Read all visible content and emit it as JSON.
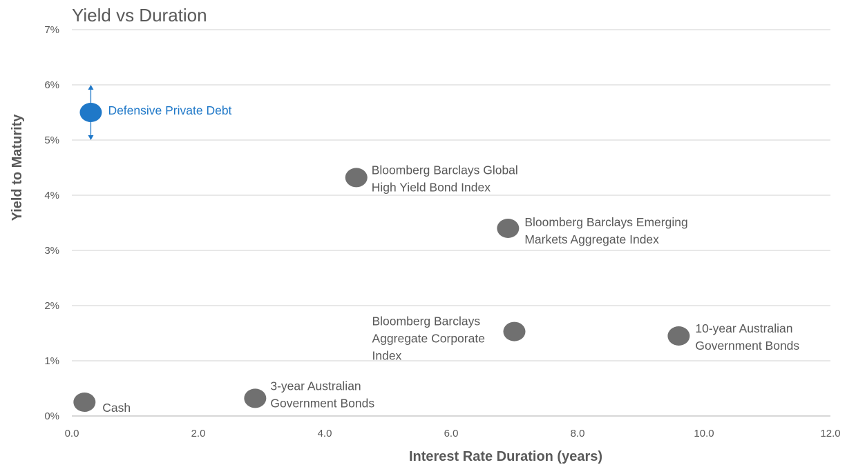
{
  "chart_data": {
    "type": "scatter",
    "title": "Yield vs Duration",
    "xlabel": "Interest Rate Duration (years)",
    "ylabel": "Yield to Maturity",
    "xlim": [
      0,
      12
    ],
    "ylim": [
      0,
      7
    ],
    "x_ticks": [
      "0.0",
      "2.0",
      "4.0",
      "6.0",
      "8.0",
      "10.0",
      "12.0"
    ],
    "y_ticks": [
      "0%",
      "1%",
      "2%",
      "3%",
      "4%",
      "5%",
      "6%",
      "7%"
    ],
    "grid": "horizontal",
    "points": [
      {
        "label": "Defensive Private Debt",
        "x": 0.3,
        "y": 5.5,
        "color": "#1f78c8",
        "highlight": true,
        "range": [
          5.0,
          6.0
        ]
      },
      {
        "label": "Bloomberg Barclays Global High Yield Bond Index",
        "lines": [
          "Bloomberg Barclays Global",
          "High Yield Bond Index"
        ],
        "x": 4.5,
        "y": 4.32,
        "color": "#707070"
      },
      {
        "label": "Bloomberg Barclays Emerging Markets Aggregate Index",
        "lines": [
          "Bloomberg Barclays Emerging",
          "Markets Aggregate Index"
        ],
        "x": 6.9,
        "y": 3.4,
        "color": "#707070"
      },
      {
        "label": "Bloomberg Barclays Aggregate Corporate Index",
        "lines": [
          "Bloomberg Barclays",
          "Aggregate Corporate",
          "Index"
        ],
        "x": 7.0,
        "y": 1.53,
        "color": "#707070"
      },
      {
        "label": "10-year Australian Government Bonds",
        "lines": [
          "10-year Australian",
          "Government Bonds"
        ],
        "x": 9.6,
        "y": 1.45,
        "color": "#707070"
      },
      {
        "label": "3-year Australian Government Bonds",
        "lines": [
          "3-year Australian",
          "Government Bonds"
        ],
        "x": 2.9,
        "y": 0.32,
        "color": "#707070"
      },
      {
        "label": "Cash",
        "x": 0.2,
        "y": 0.25,
        "color": "#707070"
      }
    ]
  }
}
